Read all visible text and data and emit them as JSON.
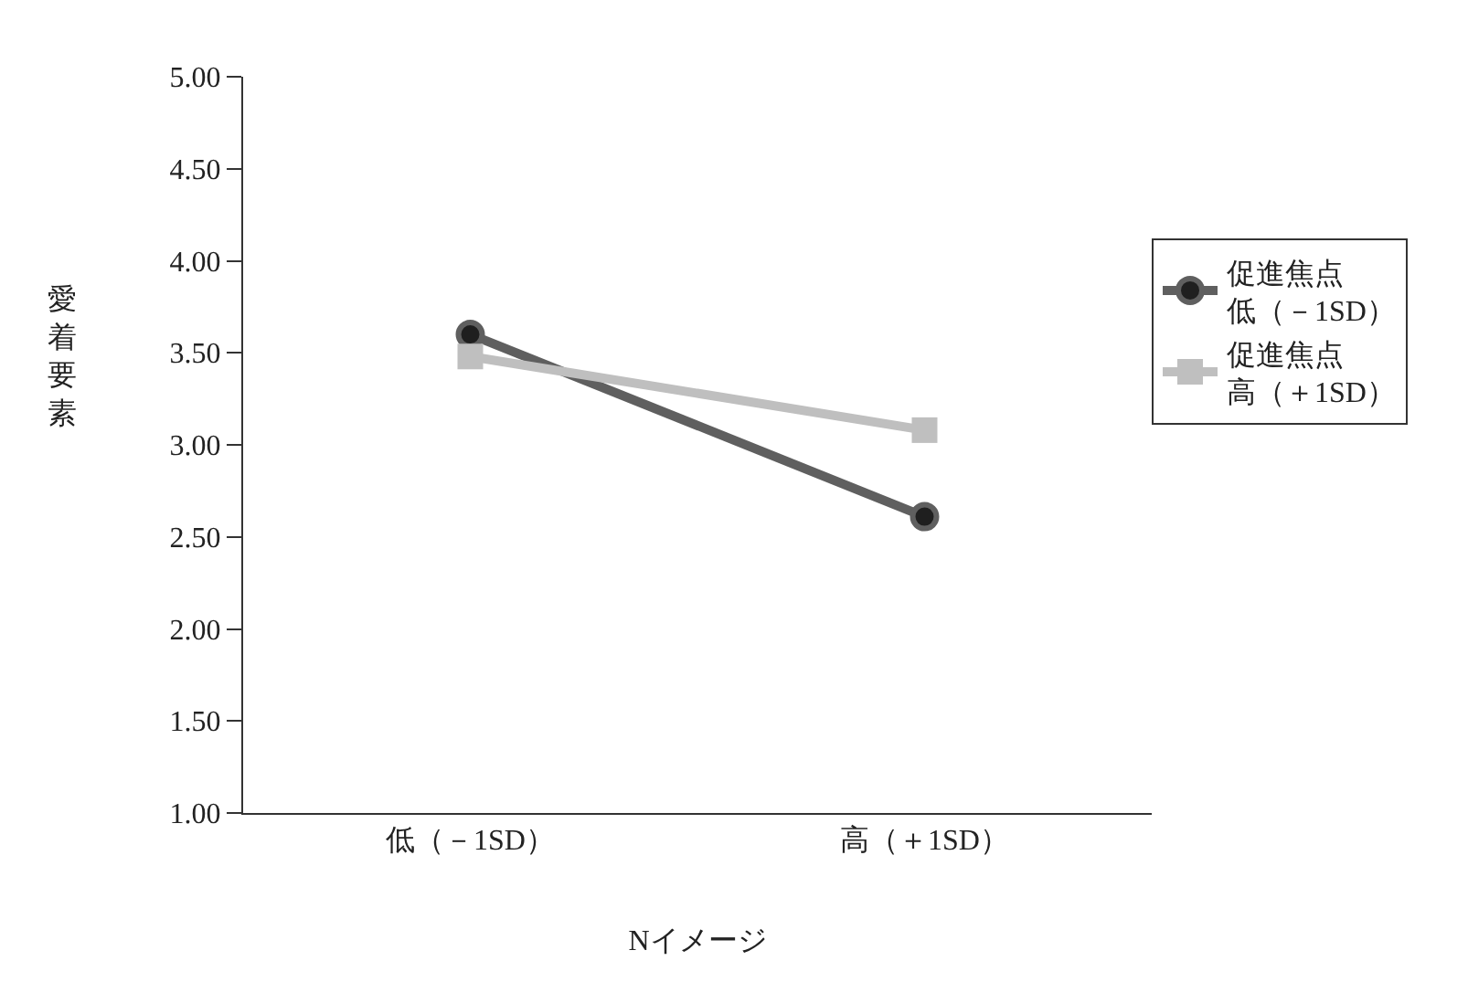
{
  "chart_data": {
    "type": "line",
    "xlabel": "Nイメージ",
    "ylabel": "愛着要素",
    "categories": [
      "低（－1SD）",
      "高（＋1SD）"
    ],
    "series": [
      {
        "name": "促進焦点低（－1SD）",
        "color": "#5f5f5f",
        "marker": "circle",
        "values": [
          3.6,
          2.61
        ]
      },
      {
        "name": "促進焦点高（＋1SD）",
        "color": "#bfbfbf",
        "marker": "square",
        "values": [
          3.48,
          3.08
        ]
      }
    ],
    "ylim": [
      1,
      5
    ],
    "yticks": [
      {
        "value": 1,
        "label": "1.00"
      },
      {
        "value": 1.5,
        "label": "1.50"
      },
      {
        "value": 2,
        "label": "2.00"
      },
      {
        "value": 2.5,
        "label": "2.50"
      },
      {
        "value": 3,
        "label": "3.00"
      },
      {
        "value": 3.5,
        "label": "3.50"
      },
      {
        "value": 4,
        "label": "4.00"
      },
      {
        "value": 4.5,
        "label": "4.50"
      },
      {
        "value": 5,
        "label": "5.00"
      }
    ],
    "grid": false,
    "legend": "right",
    "line_style": "solid"
  }
}
